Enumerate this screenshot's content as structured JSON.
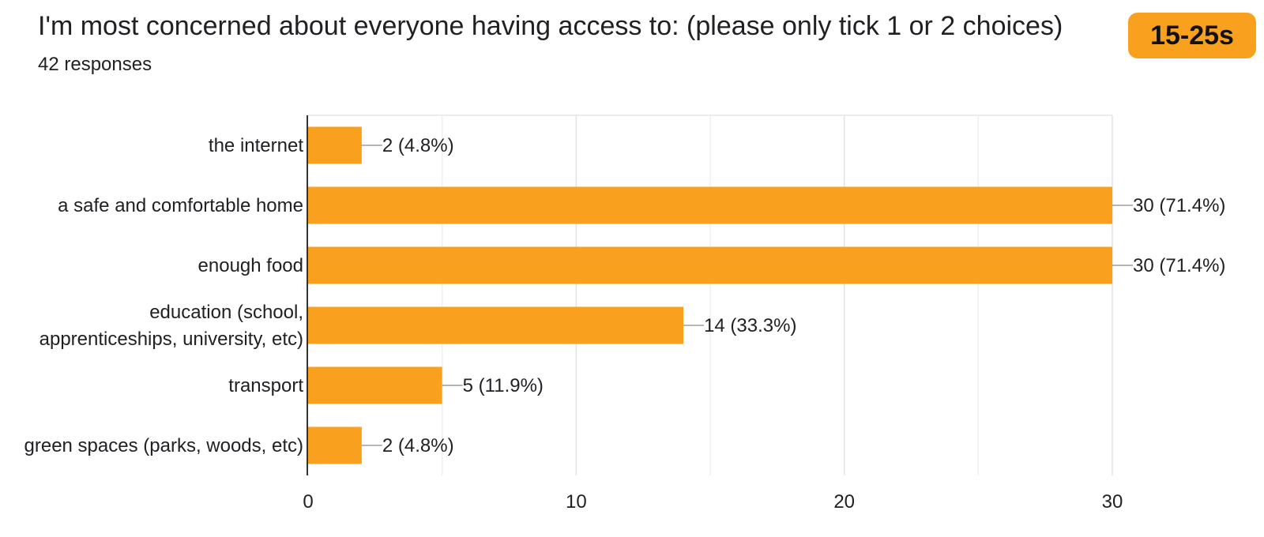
{
  "header": {
    "title": "I'm most concerned about everyone having access to: (please only tick 1 or 2 choices)",
    "responses": "42 responses"
  },
  "badge": {
    "label": "15-25s",
    "color": "#f9a11e"
  },
  "chart_data": {
    "type": "bar",
    "orientation": "horizontal",
    "categories": [
      [
        "the internet"
      ],
      [
        "a safe and comfortable home"
      ],
      [
        "enough food"
      ],
      [
        "education (school,",
        "apprenticeships, university, etc)"
      ],
      [
        "transport"
      ],
      [
        "green spaces (parks, woods, etc)"
      ]
    ],
    "values": [
      2,
      30,
      30,
      14,
      5,
      2
    ],
    "value_labels": [
      "2 (4.8%)",
      "30 (71.4%)",
      "30 (71.4%)",
      "14 (33.3%)",
      "5 (11.9%)",
      "2 (4.8%)"
    ],
    "xlim": [
      0,
      30
    ],
    "x_ticks": [
      0,
      10,
      20,
      30
    ],
    "bar_color": "#f9a11e",
    "grid": true
  }
}
